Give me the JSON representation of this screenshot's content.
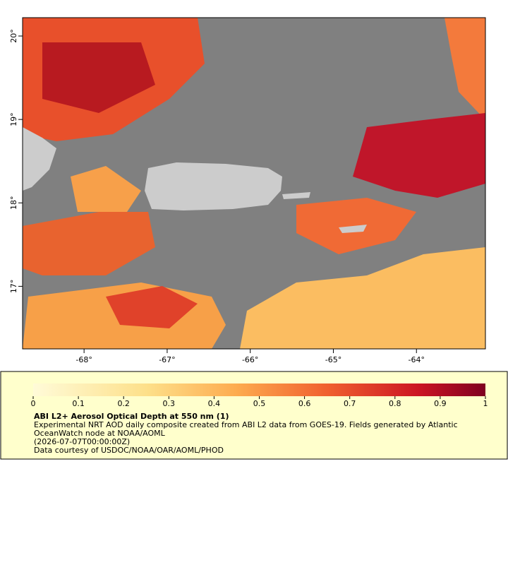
{
  "chart_data": {
    "type": "map",
    "xlim": [
      -68.74,
      -63.17
    ],
    "ylim": [
      16.25,
      20.22
    ],
    "xticks": [
      {
        "value": -68,
        "label": "-68°"
      },
      {
        "value": -67,
        "label": "-67°"
      },
      {
        "value": -66,
        "label": "-66°"
      },
      {
        "value": -65,
        "label": "-65°"
      },
      {
        "value": -64,
        "label": "-64°"
      }
    ],
    "yticks": [
      {
        "value": 17,
        "label": "17°"
      },
      {
        "value": 18,
        "label": "18°"
      },
      {
        "value": 19,
        "label": "19°"
      },
      {
        "value": 20,
        "label": "20°"
      }
    ],
    "colorbar": {
      "lim": [
        0,
        1
      ],
      "ticks": [
        0,
        0.1,
        0.2,
        0.3,
        0.4,
        0.5,
        0.6,
        0.7,
        0.8,
        0.9,
        1
      ]
    },
    "title": "ABI L2+ Aerosol Optical Depth at 550 nm (1)",
    "description": [
      "Experimental NRT AOD daily composite created from ABI L2 data from GOES-19. Fields generated by Atlantic",
      "OceanWatch node at NOAA/AOML",
      "(2026-07-07T00:00:00Z)",
      "Data courtesy of USDOC/NOAA/OAR/AOML/PHOD"
    ]
  }
}
